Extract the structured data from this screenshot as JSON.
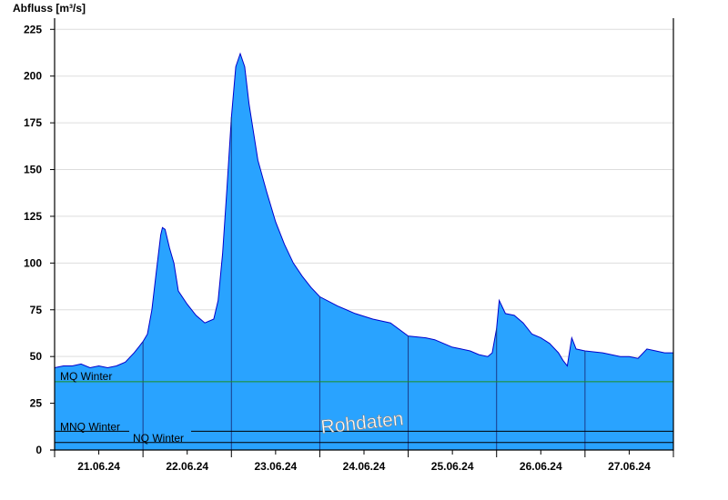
{
  "chart_data": {
    "type": "area",
    "ylabel": "Abfluss [m³/s]",
    "ylim": [
      0,
      230
    ],
    "yticks": [
      0,
      25,
      50,
      75,
      100,
      125,
      150,
      175,
      200,
      225
    ],
    "ytick_labels": [
      "0",
      "25",
      "50",
      "75",
      "100",
      "125",
      "150",
      "175",
      "200",
      "225"
    ],
    "xlim": [
      0,
      7
    ],
    "day_boundaries": [
      1,
      2,
      3,
      4,
      5,
      6
    ],
    "xtick_labels": [
      "21.06.24",
      "22.06.24",
      "23.06.24",
      "24.06.24",
      "25.06.24",
      "26.06.24",
      "27.06.24"
    ],
    "grid": "horizontal",
    "series": [
      {
        "values": [
          [
            0.0,
            44
          ],
          [
            0.1,
            45
          ],
          [
            0.2,
            45
          ],
          [
            0.3,
            46
          ],
          [
            0.4,
            44
          ],
          [
            0.5,
            45
          ],
          [
            0.6,
            44
          ],
          [
            0.7,
            45
          ],
          [
            0.8,
            47
          ],
          [
            0.9,
            52
          ],
          [
            0.95,
            55
          ],
          [
            1.0,
            58
          ],
          [
            1.05,
            62
          ],
          [
            1.1,
            75
          ],
          [
            1.15,
            95
          ],
          [
            1.2,
            115
          ],
          [
            1.22,
            119
          ],
          [
            1.25,
            118
          ],
          [
            1.3,
            108
          ],
          [
            1.35,
            100
          ],
          [
            1.4,
            85
          ],
          [
            1.5,
            78
          ],
          [
            1.6,
            72
          ],
          [
            1.7,
            68
          ],
          [
            1.8,
            70
          ],
          [
            1.85,
            80
          ],
          [
            1.9,
            105
          ],
          [
            1.95,
            140
          ],
          [
            2.0,
            178
          ],
          [
            2.05,
            205
          ],
          [
            2.1,
            212
          ],
          [
            2.15,
            205
          ],
          [
            2.2,
            185
          ],
          [
            2.3,
            155
          ],
          [
            2.4,
            138
          ],
          [
            2.5,
            122
          ],
          [
            2.6,
            110
          ],
          [
            2.7,
            100
          ],
          [
            2.8,
            93
          ],
          [
            2.9,
            87
          ],
          [
            3.0,
            82
          ],
          [
            3.2,
            77
          ],
          [
            3.4,
            73
          ],
          [
            3.6,
            70
          ],
          [
            3.8,
            68
          ],
          [
            4.0,
            61
          ],
          [
            4.2,
            60
          ],
          [
            4.3,
            59
          ],
          [
            4.4,
            57
          ],
          [
            4.5,
            55
          ],
          [
            4.6,
            54
          ],
          [
            4.7,
            53
          ],
          [
            4.8,
            51
          ],
          [
            4.9,
            50
          ],
          [
            4.95,
            52
          ],
          [
            5.0,
            65
          ],
          [
            5.03,
            80
          ],
          [
            5.1,
            73
          ],
          [
            5.2,
            72
          ],
          [
            5.3,
            68
          ],
          [
            5.4,
            62
          ],
          [
            5.5,
            60
          ],
          [
            5.6,
            57
          ],
          [
            5.7,
            52
          ],
          [
            5.75,
            48
          ],
          [
            5.8,
            45
          ],
          [
            5.85,
            60
          ],
          [
            5.9,
            54
          ],
          [
            6.0,
            53
          ],
          [
            6.2,
            52
          ],
          [
            6.4,
            50
          ],
          [
            6.5,
            50
          ],
          [
            6.6,
            49
          ],
          [
            6.7,
            54
          ],
          [
            6.8,
            53
          ],
          [
            6.9,
            52
          ],
          [
            7.0,
            52
          ]
        ]
      }
    ],
    "reference_lines": [
      {
        "label": "MQ Winter",
        "value": 36.5,
        "color": "#1f8f1f"
      },
      {
        "label": "MNQ Winter",
        "value": 10,
        "color": "#000000"
      },
      {
        "label": "NQ Winter",
        "value": 4,
        "color": "#000000"
      }
    ],
    "watermark": "Rohdaten",
    "colors": {
      "fill": "#29a3ff",
      "line": "#0000cc",
      "grid": "#dddddd",
      "day_line": "#1a3a8a"
    }
  }
}
